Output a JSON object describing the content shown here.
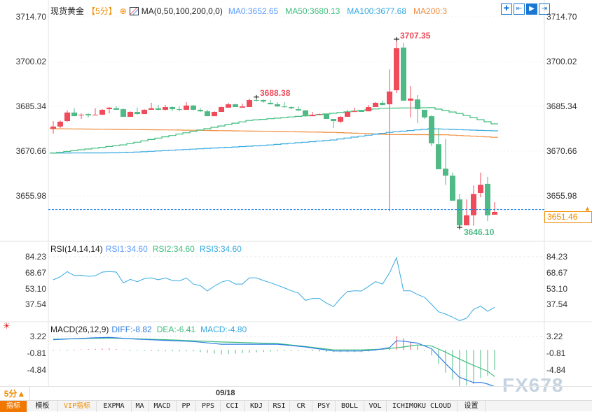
{
  "header": {
    "symbol": "现货黄金",
    "period": "【5分】",
    "indicator": "MA(0,50,100,200,0,0)",
    "ma0": "MA0:3652.65",
    "ma50": "MA50:3680.13",
    "ma100": "MA100:3677.68",
    "ma200": "MA200:3"
  },
  "colors": {
    "up": "#ef4b5a",
    "down": "#4fba85",
    "ma50": "#3dbd7d",
    "ma100": "#36a9e1",
    "ma200": "#f08c3c",
    "accent": "#f07800",
    "diff": "#2f7fe8",
    "dea": "#3dbd7d",
    "rsi": "#36a9e1"
  },
  "price_axis": [
    "3714.70",
    "3700.02",
    "3685.34",
    "3670.66",
    "3655.98"
  ],
  "current_price": "3651.46",
  "annotations": {
    "high1": "3688.38",
    "high2": "3707.35",
    "low": "3646.10"
  },
  "rsi": {
    "title": "RSI(14,14,14)",
    "rsi1": "RSI1:34.60",
    "rsi2": "RSI2:34.60",
    "rsi3": "RSI3:34.60",
    "axis": [
      "84.23",
      "68.67",
      "53.10",
      "37.54"
    ]
  },
  "macd": {
    "title": "MACD(26,12,9)",
    "diff": "DIFF:-8.82",
    "dea": "DEA:-6.41",
    "macd": "MACD:-4.80",
    "axis": [
      "3.22",
      "-0.81",
      "-4.84"
    ]
  },
  "timebar": {
    "period": "5分▲",
    "date": "09/18"
  },
  "toolbar": [
    "指标",
    "模板",
    "VIP指标",
    "EXPMA",
    "MA",
    "MACD",
    "PP",
    "PPS",
    "CCI",
    "KDJ",
    "RSI",
    "CR",
    "PSY",
    "BOLL",
    "VOL",
    "ICHIMOKU CLOUD",
    "设置"
  ],
  "watermark": "FX678",
  "chart_data": {
    "type": "candlestick",
    "ohlc": [
      [
        3678.0,
        3678.7,
        3680.5,
        3676.4
      ],
      [
        3678.7,
        3680.3,
        3680.7,
        3678.2
      ],
      [
        3680.5,
        3683.3,
        3684.0,
        3680.3
      ],
      [
        3683.3,
        3682.1,
        3684.7,
        3682.1
      ],
      [
        3682.4,
        3682.6,
        3683.0,
        3681.2
      ],
      [
        3682.8,
        3682.4,
        3683.0,
        3681.7
      ],
      [
        3682.4,
        3682.6,
        3684.7,
        3682.4
      ],
      [
        3682.6,
        3684.2,
        3684.4,
        3682.4
      ],
      [
        3684.4,
        3684.9,
        3685.1,
        3683.0
      ],
      [
        3684.7,
        3684.2,
        3685.3,
        3684.2
      ],
      [
        3684.4,
        3681.9,
        3684.7,
        3681.9
      ],
      [
        3681.9,
        3683.5,
        3683.7,
        3681.9
      ],
      [
        3683.5,
        3682.8,
        3684.9,
        3682.6
      ],
      [
        3682.8,
        3684.2,
        3684.4,
        3682.8
      ],
      [
        3684.2,
        3684.7,
        3686.5,
        3684.2
      ],
      [
        3684.7,
        3684.2,
        3685.8,
        3684.0
      ],
      [
        3684.2,
        3685.1,
        3685.8,
        3684.0
      ],
      [
        3685.1,
        3684.4,
        3685.3,
        3683.7
      ],
      [
        3684.4,
        3684.2,
        3685.3,
        3683.7
      ],
      [
        3684.2,
        3685.6,
        3686.7,
        3684.2
      ],
      [
        3685.6,
        3684.2,
        3685.8,
        3684.0
      ],
      [
        3684.2,
        3683.7,
        3684.7,
        3683.5
      ],
      [
        3683.7,
        3682.1,
        3684.2,
        3682.1
      ],
      [
        3682.1,
        3683.5,
        3683.7,
        3682.1
      ],
      [
        3683.5,
        3685.1,
        3685.3,
        3683.5
      ],
      [
        3684.9,
        3686.0,
        3686.5,
        3684.9
      ],
      [
        3686.0,
        3685.1,
        3686.2,
        3685.1
      ],
      [
        3684.9,
        3685.3,
        3686.2,
        3684.9
      ],
      [
        3685.1,
        3687.4,
        3687.9,
        3685.1
      ],
      [
        3687.4,
        3687.2,
        3688.38,
        3686.9
      ],
      [
        3687.4,
        3686.9,
        3687.6,
        3686.5
      ],
      [
        3686.5,
        3686.0,
        3687.4,
        3686.0
      ],
      [
        3686.0,
        3685.3,
        3686.7,
        3685.1
      ],
      [
        3685.3,
        3685.1,
        3686.7,
        3684.9
      ],
      [
        3685.1,
        3684.7,
        3685.3,
        3684.4
      ],
      [
        3684.4,
        3684.0,
        3685.3,
        3683.7
      ],
      [
        3684.0,
        3682.4,
        3684.2,
        3681.9
      ],
      [
        3682.1,
        3682.6,
        3683.5,
        3682.1
      ],
      [
        3682.6,
        3682.8,
        3683.0,
        3682.4
      ],
      [
        3682.8,
        3681.2,
        3683.0,
        3681.2
      ],
      [
        3681.2,
        3680.5,
        3681.2,
        3678.2
      ],
      [
        3680.3,
        3681.9,
        3682.1,
        3679.8
      ],
      [
        3681.9,
        3683.5,
        3684.2,
        3681.9
      ],
      [
        3683.5,
        3683.7,
        3684.9,
        3683.5
      ],
      [
        3684.0,
        3683.5,
        3684.2,
        3683.5
      ],
      [
        3683.7,
        3685.1,
        3685.8,
        3683.7
      ],
      [
        3685.1,
        3686.5,
        3686.7,
        3685.1
      ],
      [
        3686.5,
        3685.8,
        3687.2,
        3685.6
      ],
      [
        3686.0,
        3690.2,
        3697.5,
        3650.9
      ],
      [
        3690.6,
        3704.4,
        3707.35,
        3689.7
      ],
      [
        3704.6,
        3687.2,
        3706.2,
        3687.2
      ],
      [
        3687.2,
        3687.9,
        3692.0,
        3681.7
      ],
      [
        3687.6,
        3684.4,
        3689.0,
        3679.8
      ],
      [
        3684.2,
        3681.7,
        3684.2,
        3681.2
      ],
      [
        3682.1,
        3673.2,
        3682.4,
        3672.3
      ],
      [
        3672.9,
        3664.7,
        3678.2,
        3664.7
      ],
      [
        3664.9,
        3662.6,
        3674.6,
        3659.6
      ],
      [
        3662.6,
        3654.4,
        3663.6,
        3654.4
      ],
      [
        3654.8,
        3646.3,
        3656.6,
        3646.1
      ],
      [
        3646.3,
        3649.6,
        3654.8,
        3646.3
      ],
      [
        3649.6,
        3656.6,
        3659.4,
        3646.2
      ],
      [
        3656.9,
        3659.6,
        3663.6,
        3655.5
      ],
      [
        3659.9,
        3649.6,
        3662.2,
        3647.7
      ],
      [
        3649.8,
        3650.7,
        3653.9,
        3649.8
      ]
    ],
    "ma50": [
      [
        0,
        3670.0
      ],
      [
        10,
        3672.7
      ],
      [
        20,
        3677.1
      ],
      [
        28,
        3680.7
      ],
      [
        38,
        3682.6
      ],
      [
        44,
        3684.0
      ],
      [
        47,
        3684.7
      ],
      [
        54,
        3684.9
      ],
      [
        58,
        3683.0
      ],
      [
        63,
        3679.6
      ]
    ],
    "ma100": [
      [
        0,
        3670.0
      ],
      [
        10,
        3670.1
      ],
      [
        20,
        3671.3
      ],
      [
        30,
        3672.5
      ],
      [
        40,
        3674.3
      ],
      [
        48,
        3676.8
      ],
      [
        54,
        3678.0
      ],
      [
        63,
        3677.3
      ]
    ],
    "ma200": [
      [
        0,
        3678.0
      ],
      [
        20,
        3677.5
      ],
      [
        40,
        3676.8
      ],
      [
        48,
        3676.1
      ],
      [
        56,
        3676.0
      ],
      [
        63,
        3675.2
      ]
    ],
    "ylim": [
      3640.0,
      3719.0
    ],
    "rsi": [
      61.6,
      64.5,
      69.6,
      65.7,
      66.1,
      65.0,
      65.5,
      69.1,
      69.6,
      69.1,
      58.6,
      62.0,
      59.7,
      62.7,
      63.4,
      61.6,
      63.4,
      60.9,
      60.4,
      63.4,
      57.4,
      55.8,
      50.6,
      55.4,
      59.3,
      61.1,
      57.4,
      57.4,
      63.4,
      63.4,
      60.9,
      58.6,
      56.3,
      53.6,
      50.8,
      48.5,
      41.4,
      43.3,
      43.3,
      38.7,
      35.2,
      43.3,
      50.1,
      50.8,
      50.6,
      55.1,
      59.7,
      57.4,
      68.4,
      83.3,
      50.8,
      50.8,
      47.1,
      44.4,
      37.5,
      30.2,
      27.9,
      24.9,
      21.5,
      23.8,
      32.5,
      35.7,
      30.7,
      34.6
    ],
    "diff": [
      [
        0,
        2.45
      ],
      [
        5,
        2.84
      ],
      [
        8,
        3.0
      ],
      [
        12,
        2.56
      ],
      [
        20,
        2.0
      ],
      [
        24,
        1.36
      ],
      [
        32,
        1.36
      ],
      [
        36,
        0.7
      ],
      [
        40,
        -0.28
      ],
      [
        44,
        -0.28
      ],
      [
        46,
        0.0
      ],
      [
        48,
        0.53
      ],
      [
        49,
        2.18
      ],
      [
        50,
        2.07
      ],
      [
        52,
        1.63
      ],
      [
        54,
        0.26
      ],
      [
        56,
        -3.3
      ],
      [
        58,
        -6.6
      ],
      [
        60,
        -7.85
      ],
      [
        61,
        -7.8
      ],
      [
        62,
        -8.2
      ],
      [
        63,
        -8.82
      ]
    ],
    "dea": [
      [
        0,
        2.56
      ],
      [
        8,
        2.84
      ],
      [
        16,
        2.45
      ],
      [
        24,
        1.9
      ],
      [
        32,
        1.52
      ],
      [
        36,
        0.81
      ],
      [
        40,
        0.0
      ],
      [
        44,
        0.0
      ],
      [
        47,
        0.16
      ],
      [
        50,
        0.7
      ],
      [
        52,
        1.19
      ],
      [
        54,
        0.92
      ],
      [
        56,
        -0.56
      ],
      [
        58,
        -2.2
      ],
      [
        60,
        -3.74
      ],
      [
        62,
        -5.1
      ],
      [
        63,
        -6.41
      ]
    ]
  }
}
